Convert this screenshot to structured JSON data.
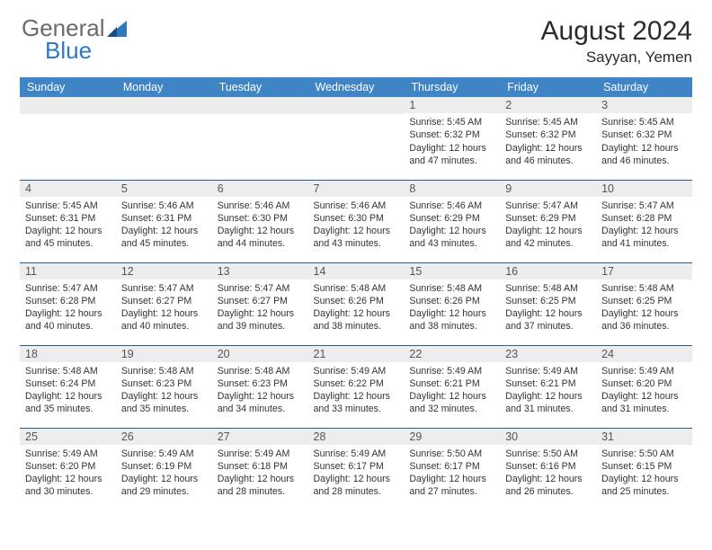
{
  "logo": {
    "text1": "General",
    "text2": "Blue",
    "icon_color": "#2f78bf"
  },
  "title": "August 2024",
  "location": "Sayyan, Yemen",
  "day_headers": [
    "Sunday",
    "Monday",
    "Tuesday",
    "Wednesday",
    "Thursday",
    "Friday",
    "Saturday"
  ],
  "colors": {
    "header_bg": "#3f85c6",
    "header_text": "#ffffff",
    "daynum_bg": "#ededed",
    "cell_border": "#2a5d8a",
    "text": "#333333"
  },
  "weeks": [
    [
      {
        "day": "",
        "sunrise": "",
        "sunset": "",
        "daylight1": "",
        "daylight2": ""
      },
      {
        "day": "",
        "sunrise": "",
        "sunset": "",
        "daylight1": "",
        "daylight2": ""
      },
      {
        "day": "",
        "sunrise": "",
        "sunset": "",
        "daylight1": "",
        "daylight2": ""
      },
      {
        "day": "",
        "sunrise": "",
        "sunset": "",
        "daylight1": "",
        "daylight2": ""
      },
      {
        "day": "1",
        "sunrise": "Sunrise: 5:45 AM",
        "sunset": "Sunset: 6:32 PM",
        "daylight1": "Daylight: 12 hours",
        "daylight2": "and 47 minutes."
      },
      {
        "day": "2",
        "sunrise": "Sunrise: 5:45 AM",
        "sunset": "Sunset: 6:32 PM",
        "daylight1": "Daylight: 12 hours",
        "daylight2": "and 46 minutes."
      },
      {
        "day": "3",
        "sunrise": "Sunrise: 5:45 AM",
        "sunset": "Sunset: 6:32 PM",
        "daylight1": "Daylight: 12 hours",
        "daylight2": "and 46 minutes."
      }
    ],
    [
      {
        "day": "4",
        "sunrise": "Sunrise: 5:45 AM",
        "sunset": "Sunset: 6:31 PM",
        "daylight1": "Daylight: 12 hours",
        "daylight2": "and 45 minutes."
      },
      {
        "day": "5",
        "sunrise": "Sunrise: 5:46 AM",
        "sunset": "Sunset: 6:31 PM",
        "daylight1": "Daylight: 12 hours",
        "daylight2": "and 45 minutes."
      },
      {
        "day": "6",
        "sunrise": "Sunrise: 5:46 AM",
        "sunset": "Sunset: 6:30 PM",
        "daylight1": "Daylight: 12 hours",
        "daylight2": "and 44 minutes."
      },
      {
        "day": "7",
        "sunrise": "Sunrise: 5:46 AM",
        "sunset": "Sunset: 6:30 PM",
        "daylight1": "Daylight: 12 hours",
        "daylight2": "and 43 minutes."
      },
      {
        "day": "8",
        "sunrise": "Sunrise: 5:46 AM",
        "sunset": "Sunset: 6:29 PM",
        "daylight1": "Daylight: 12 hours",
        "daylight2": "and 43 minutes."
      },
      {
        "day": "9",
        "sunrise": "Sunrise: 5:47 AM",
        "sunset": "Sunset: 6:29 PM",
        "daylight1": "Daylight: 12 hours",
        "daylight2": "and 42 minutes."
      },
      {
        "day": "10",
        "sunrise": "Sunrise: 5:47 AM",
        "sunset": "Sunset: 6:28 PM",
        "daylight1": "Daylight: 12 hours",
        "daylight2": "and 41 minutes."
      }
    ],
    [
      {
        "day": "11",
        "sunrise": "Sunrise: 5:47 AM",
        "sunset": "Sunset: 6:28 PM",
        "daylight1": "Daylight: 12 hours",
        "daylight2": "and 40 minutes."
      },
      {
        "day": "12",
        "sunrise": "Sunrise: 5:47 AM",
        "sunset": "Sunset: 6:27 PM",
        "daylight1": "Daylight: 12 hours",
        "daylight2": "and 40 minutes."
      },
      {
        "day": "13",
        "sunrise": "Sunrise: 5:47 AM",
        "sunset": "Sunset: 6:27 PM",
        "daylight1": "Daylight: 12 hours",
        "daylight2": "and 39 minutes."
      },
      {
        "day": "14",
        "sunrise": "Sunrise: 5:48 AM",
        "sunset": "Sunset: 6:26 PM",
        "daylight1": "Daylight: 12 hours",
        "daylight2": "and 38 minutes."
      },
      {
        "day": "15",
        "sunrise": "Sunrise: 5:48 AM",
        "sunset": "Sunset: 6:26 PM",
        "daylight1": "Daylight: 12 hours",
        "daylight2": "and 38 minutes."
      },
      {
        "day": "16",
        "sunrise": "Sunrise: 5:48 AM",
        "sunset": "Sunset: 6:25 PM",
        "daylight1": "Daylight: 12 hours",
        "daylight2": "and 37 minutes."
      },
      {
        "day": "17",
        "sunrise": "Sunrise: 5:48 AM",
        "sunset": "Sunset: 6:25 PM",
        "daylight1": "Daylight: 12 hours",
        "daylight2": "and 36 minutes."
      }
    ],
    [
      {
        "day": "18",
        "sunrise": "Sunrise: 5:48 AM",
        "sunset": "Sunset: 6:24 PM",
        "daylight1": "Daylight: 12 hours",
        "daylight2": "and 35 minutes."
      },
      {
        "day": "19",
        "sunrise": "Sunrise: 5:48 AM",
        "sunset": "Sunset: 6:23 PM",
        "daylight1": "Daylight: 12 hours",
        "daylight2": "and 35 minutes."
      },
      {
        "day": "20",
        "sunrise": "Sunrise: 5:48 AM",
        "sunset": "Sunset: 6:23 PM",
        "daylight1": "Daylight: 12 hours",
        "daylight2": "and 34 minutes."
      },
      {
        "day": "21",
        "sunrise": "Sunrise: 5:49 AM",
        "sunset": "Sunset: 6:22 PM",
        "daylight1": "Daylight: 12 hours",
        "daylight2": "and 33 minutes."
      },
      {
        "day": "22",
        "sunrise": "Sunrise: 5:49 AM",
        "sunset": "Sunset: 6:21 PM",
        "daylight1": "Daylight: 12 hours",
        "daylight2": "and 32 minutes."
      },
      {
        "day": "23",
        "sunrise": "Sunrise: 5:49 AM",
        "sunset": "Sunset: 6:21 PM",
        "daylight1": "Daylight: 12 hours",
        "daylight2": "and 31 minutes."
      },
      {
        "day": "24",
        "sunrise": "Sunrise: 5:49 AM",
        "sunset": "Sunset: 6:20 PM",
        "daylight1": "Daylight: 12 hours",
        "daylight2": "and 31 minutes."
      }
    ],
    [
      {
        "day": "25",
        "sunrise": "Sunrise: 5:49 AM",
        "sunset": "Sunset: 6:20 PM",
        "daylight1": "Daylight: 12 hours",
        "daylight2": "and 30 minutes."
      },
      {
        "day": "26",
        "sunrise": "Sunrise: 5:49 AM",
        "sunset": "Sunset: 6:19 PM",
        "daylight1": "Daylight: 12 hours",
        "daylight2": "and 29 minutes."
      },
      {
        "day": "27",
        "sunrise": "Sunrise: 5:49 AM",
        "sunset": "Sunset: 6:18 PM",
        "daylight1": "Daylight: 12 hours",
        "daylight2": "and 28 minutes."
      },
      {
        "day": "28",
        "sunrise": "Sunrise: 5:49 AM",
        "sunset": "Sunset: 6:17 PM",
        "daylight1": "Daylight: 12 hours",
        "daylight2": "and 28 minutes."
      },
      {
        "day": "29",
        "sunrise": "Sunrise: 5:50 AM",
        "sunset": "Sunset: 6:17 PM",
        "daylight1": "Daylight: 12 hours",
        "daylight2": "and 27 minutes."
      },
      {
        "day": "30",
        "sunrise": "Sunrise: 5:50 AM",
        "sunset": "Sunset: 6:16 PM",
        "daylight1": "Daylight: 12 hours",
        "daylight2": "and 26 minutes."
      },
      {
        "day": "31",
        "sunrise": "Sunrise: 5:50 AM",
        "sunset": "Sunset: 6:15 PM",
        "daylight1": "Daylight: 12 hours",
        "daylight2": "and 25 minutes."
      }
    ]
  ]
}
